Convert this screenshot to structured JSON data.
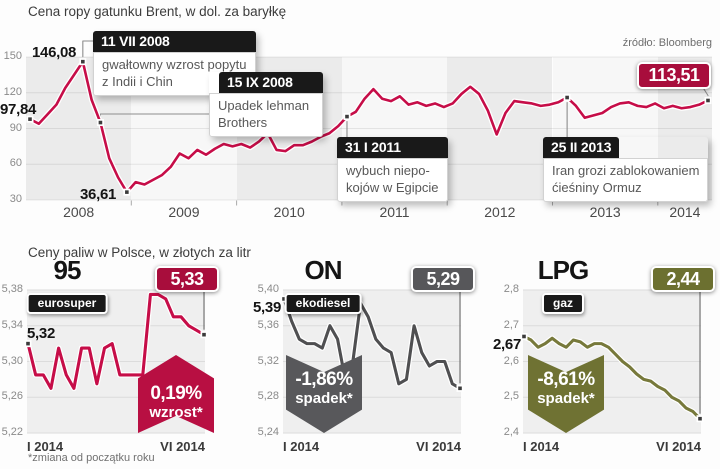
{
  "page": {
    "fuels_title": "Ceny paliw w Polsce, w złotych za litr",
    "footnote": "*zmiana od początku roku"
  },
  "chart_data": [
    {
      "id": "brent",
      "type": "line",
      "title": "Cena ropy gatunku Brent, w dol. za baryłkę",
      "source": "źródło: Bloomberg",
      "x_start": "I 2008",
      "x_end": "VI 2014",
      "interval": "monthly",
      "ylim": [
        30,
        150
      ],
      "y_ticks": [
        "150",
        "120",
        "90",
        "60",
        "30"
      ],
      "x_ticks": [
        "2008",
        "2009",
        "2010",
        "2011",
        "2012",
        "2013",
        "2014"
      ],
      "line_color": "#c60d48",
      "badge_color": "#a80d3c",
      "point_labels": {
        "start": "97,84",
        "peak": "146,08",
        "low": "36,61",
        "end": "113,51"
      },
      "marker_indices": [
        0,
        6,
        8,
        11,
        36,
        61,
        77
      ],
      "annotations": [
        {
          "date": "11 VII 2008",
          "text": "gwałtowny wzrost popytu\nz Indii i Chin"
        },
        {
          "date": "15 IX 2008",
          "text": "Upadek lehman\nBrothers"
        },
        {
          "date": "31 I 2011",
          "text": "wybuch niepo-\nkojów w Egipcie"
        },
        {
          "date": "25 II 2013",
          "text": "Iran grozi zablokowaniem\nćieśniny Ormuz"
        }
      ],
      "values": [
        97.84,
        94,
        102,
        110,
        124,
        135,
        146.08,
        114,
        95,
        65,
        49,
        36.61,
        45,
        43,
        47,
        51,
        58,
        69,
        65,
        72,
        68,
        73,
        77,
        75,
        77,
        74,
        79,
        86,
        72,
        71,
        76,
        76,
        79,
        83,
        86,
        92,
        100,
        104,
        115,
        123,
        115,
        113,
        117,
        110,
        112,
        109,
        111,
        108,
        111,
        119,
        125,
        119,
        105,
        85,
        103,
        113,
        112,
        111,
        109,
        110,
        112,
        116,
        109,
        99,
        101,
        103,
        108,
        111,
        112,
        109,
        108,
        111,
        107,
        109,
        107,
        108,
        110,
        113.51
      ]
    },
    {
      "id": "eurosuper95",
      "type": "line",
      "title": "95",
      "tag": "eurosuper",
      "x_start": "I 2014",
      "x_end": "VI 2014",
      "ylim": [
        5.22,
        5.38
      ],
      "y_ticks": [
        "5,38",
        "5,34",
        "5,30",
        "5,26",
        "5,22"
      ],
      "x_ticks": [
        "I 2014",
        "VI 2014"
      ],
      "start_label": "5,32",
      "end_badge": "5,33",
      "change": {
        "pct": "0,19%",
        "word": "wzrost*",
        "dir": "up"
      },
      "line_color": "#c60d48",
      "badge_color": "#a80d3c",
      "arrow_color": "#b80f42",
      "values": [
        5.32,
        5.285,
        5.285,
        5.27,
        5.315,
        5.285,
        5.27,
        5.315,
        5.315,
        5.275,
        5.315,
        5.32,
        5.285,
        5.285,
        5.285,
        5.285,
        5.375,
        5.375,
        5.37,
        5.35,
        5.35,
        5.34,
        5.335,
        5.33
      ]
    },
    {
      "id": "on",
      "type": "line",
      "title": "ON",
      "tag": "ekodiesel",
      "x_start": "I 2014",
      "x_end": "VI 2014",
      "ylim": [
        5.24,
        5.4
      ],
      "y_ticks": [
        "5,40",
        "5,36",
        "5,32",
        "5,28",
        "5,24"
      ],
      "x_ticks": [
        "I 2014",
        "VI 2014"
      ],
      "start_label": "5,39",
      "end_badge": "5,29",
      "change": {
        "pct": "-1,86%",
        "word": "spadek*",
        "dir": "down"
      },
      "line_color": "#4f4f51",
      "badge_color": "#57575a",
      "arrow_color": "#58585b",
      "values": [
        5.39,
        5.365,
        5.345,
        5.34,
        5.34,
        5.335,
        5.36,
        5.345,
        5.3,
        5.32,
        5.385,
        5.37,
        5.345,
        5.335,
        5.33,
        5.295,
        5.3,
        5.36,
        5.33,
        5.315,
        5.32,
        5.32,
        5.295,
        5.29
      ]
    },
    {
      "id": "lpg",
      "type": "line",
      "title": "LPG",
      "tag": "gaz",
      "x_start": "I 2014",
      "x_end": "VI 2014",
      "ylim": [
        2.4,
        2.8
      ],
      "y_ticks": [
        "2,8",
        "2,7",
        "2,6",
        "2,5",
        "2,4"
      ],
      "x_ticks": [
        "I 2014",
        "VI 2014"
      ],
      "start_label": "2,67",
      "end_badge": "2,44",
      "change": {
        "pct": "-8,61%",
        "word": "spadek*",
        "dir": "down"
      },
      "line_color": "#77793b",
      "badge_color": "#6c7030",
      "arrow_color": "#6f7233",
      "values": [
        2.67,
        2.66,
        2.64,
        2.65,
        2.665,
        2.65,
        2.64,
        2.66,
        2.655,
        2.64,
        2.65,
        2.65,
        2.64,
        2.62,
        2.6,
        2.585,
        2.565,
        2.55,
        2.545,
        2.53,
        2.52,
        2.5,
        2.49,
        2.47,
        2.46,
        2.44
      ]
    }
  ]
}
